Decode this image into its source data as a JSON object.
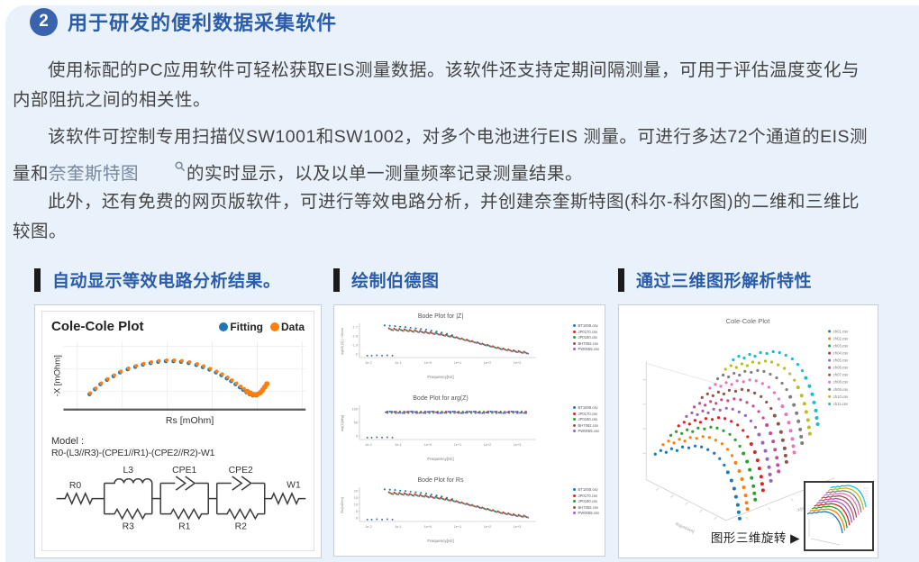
{
  "page": {
    "bg_color": "#e9f1fa",
    "accent_color": "#2a5caa"
  },
  "heading": {
    "number": "2",
    "title": "用于研发的便利数据采集软件"
  },
  "paragraphs": {
    "p1": "使用标配的PC应用软件可轻松获取EIS测量数据。该软件还支持定期间隔测量，可用于评估温度变化与内部阻抗之间的相关性。",
    "p2_pre": "该软件可控制专用扫描仪SW1001和SW1002，对多个电池进行EIS 测量。可进行多达72个通道的EIS测量和",
    "p2_link": "奈奎斯特图",
    "p2_post": "的实时显示，以及以单一测量频率记录测量结果。",
    "p3": "此外，还有免费的网页版软件，可进行等效电路分析，并创建奈奎斯特图(科尔-科尔图)的二维和三维比较图。"
  },
  "panels": {
    "p1_title": "自动显示等效电路分析结果。",
    "p2_title": "绘制伯德图",
    "p3_title": "通过三维图形解析特性",
    "rotate_label": "图形三维旋转 ▶"
  },
  "cole": {
    "title": "Cole-Cole Plot",
    "legend": [
      {
        "label": "Fitting",
        "color": "#1f77b4"
      },
      {
        "label": "Data",
        "color": "#ff7f0e"
      }
    ],
    "xlabel": "Rs [mOhm]",
    "ylabel": "-X [mOhm]",
    "model_label": "Model :",
    "model_formula": "R0-(L3//R3)-(CPE1//R1)-(CPE2//R2)-W1",
    "circuit_labels": {
      "r0": "R0",
      "l3": "L3",
      "r3": "R3",
      "cpe1": "CPE1",
      "r1": "R1",
      "cpe2": "CPE2",
      "r2": "R2",
      "w1": "W1"
    }
  },
  "chart_data": [
    {
      "key": "cole",
      "type": "scatter",
      "title": "Cole-Cole Plot",
      "xlabel": "Rs [mOhm]",
      "ylabel": "-X [mOhm]",
      "legend_position": "top-right",
      "series": [
        {
          "name": "Fitting",
          "color": "#1f77b4"
        },
        {
          "name": "Data",
          "color": "#ff7f0e"
        }
      ],
      "points": [
        [
          0.06,
          0.22
        ],
        [
          0.085,
          0.3
        ],
        [
          0.11,
          0.38
        ],
        [
          0.14,
          0.45
        ],
        [
          0.17,
          0.51
        ],
        [
          0.2,
          0.57
        ],
        [
          0.235,
          0.62
        ],
        [
          0.27,
          0.66
        ],
        [
          0.305,
          0.695
        ],
        [
          0.34,
          0.72
        ],
        [
          0.375,
          0.74
        ],
        [
          0.41,
          0.75
        ],
        [
          0.445,
          0.75
        ],
        [
          0.48,
          0.74
        ],
        [
          0.515,
          0.72
        ],
        [
          0.55,
          0.69
        ],
        [
          0.58,
          0.655
        ],
        [
          0.61,
          0.615
        ],
        [
          0.64,
          0.57
        ],
        [
          0.665,
          0.525
        ],
        [
          0.69,
          0.475
        ],
        [
          0.71,
          0.43
        ],
        [
          0.73,
          0.38
        ],
        [
          0.75,
          0.33
        ],
        [
          0.765,
          0.29
        ],
        [
          0.78,
          0.25
        ],
        [
          0.795,
          0.22
        ],
        [
          0.81,
          0.2
        ],
        [
          0.825,
          0.2
        ],
        [
          0.84,
          0.23
        ],
        [
          0.85,
          0.27
        ],
        [
          0.86,
          0.32
        ],
        [
          0.87,
          0.37
        ]
      ]
    },
    {
      "key": "bode",
      "type": "scatter",
      "files": [
        "BT1008.csv",
        "JP0170.csv",
        "JP0190.csv",
        "BH7082.csv",
        "PW0055.csv"
      ],
      "colors": [
        "#1f77b4",
        "#d62728",
        "#2ca02c",
        "#8c564b",
        "#9467bd"
      ],
      "xticks": [
        "1e-2",
        "1e-1",
        "1e+0",
        "1e+1",
        "1e+2",
        "1e+3"
      ],
      "xlabel": "Frequency[Hz]",
      "plots": [
        {
          "title": "Bode Plot for |Z|",
          "ylabel": "log10( |Z| ) / Ohms",
          "yticks": [
            "-1.7",
            "-1.8",
            "-1.9",
            "-2"
          ],
          "shape": "descend"
        },
        {
          "title": "Bode Plot for arg(Z)",
          "ylabel": "arg(Z)[deg]",
          "yticks": [
            "100",
            "50",
            "0"
          ],
          "shape": "flat"
        },
        {
          "title": "Bode Plot for Rs",
          "ylabel": "Rs[mOhm]",
          "yticks": [
            "20",
            "15",
            "10",
            "5",
            "0"
          ],
          "shape": "descend"
        }
      ],
      "curve_descend": [
        [
          0.16,
          0.9
        ],
        [
          0.19,
          0.89
        ],
        [
          0.22,
          0.88
        ],
        [
          0.25,
          0.87
        ],
        [
          0.28,
          0.85
        ],
        [
          0.31,
          0.84
        ],
        [
          0.34,
          0.82
        ],
        [
          0.37,
          0.8
        ],
        [
          0.4,
          0.78
        ],
        [
          0.43,
          0.76
        ],
        [
          0.46,
          0.73
        ],
        [
          0.49,
          0.7
        ],
        [
          0.52,
          0.67
        ],
        [
          0.55,
          0.63
        ],
        [
          0.58,
          0.59
        ],
        [
          0.61,
          0.55
        ],
        [
          0.64,
          0.51
        ],
        [
          0.67,
          0.47
        ],
        [
          0.7,
          0.43
        ],
        [
          0.73,
          0.39
        ],
        [
          0.76,
          0.35
        ],
        [
          0.79,
          0.31
        ],
        [
          0.82,
          0.28
        ],
        [
          0.85,
          0.25
        ],
        [
          0.88,
          0.22
        ],
        [
          0.91,
          0.2
        ],
        [
          0.94,
          0.18
        ]
      ],
      "flat_line": {
        "x0": 0.15,
        "x1": 0.95,
        "y": 0.84,
        "n": 34
      },
      "series_offsets": [
        [
          -0.055,
          0.1
        ],
        [
          0,
          0
        ],
        [
          0.008,
          -0.025
        ],
        [
          0.016,
          -0.045
        ],
        [
          0.024,
          -0.06
        ]
      ],
      "axis_dots": [
        [
          0.035,
          0.06
        ],
        [
          0.06,
          0.06
        ],
        [
          0.09,
          0.07
        ],
        [
          0.12,
          0.06
        ],
        [
          0.15,
          0.07
        ],
        [
          0.18,
          0.06
        ]
      ]
    },
    {
      "key": "cole3d",
      "type": "scatter3d",
      "title": "Cole-Cole Plot",
      "xlabel": "Rs[mOhm]",
      "ylabel": "-X[mOhm]",
      "series": [
        {
          "name": "ch01.csv",
          "color": "#1f77b4"
        },
        {
          "name": "ch02.csv",
          "color": "#ff7f0e"
        },
        {
          "name": "ch03.csv",
          "color": "#2ca02c"
        },
        {
          "name": "ch04.csv",
          "color": "#d62728"
        },
        {
          "name": "ch05.csv",
          "color": "#9467bd"
        },
        {
          "name": "ch06.csv",
          "color": "#c74b9b"
        },
        {
          "name": "ch07.csv",
          "color": "#8c564b"
        },
        {
          "name": "ch08.csv",
          "color": "#e377c2"
        },
        {
          "name": "ch09.csv",
          "color": "#7f7f7f"
        },
        {
          "name": "ch10.csv",
          "color": "#bcbd22"
        },
        {
          "name": "ch11.csv",
          "color": "#17becf"
        }
      ],
      "hook": [
        [
          40,
          162
        ],
        [
          46,
          158
        ],
        [
          52,
          160
        ],
        [
          58,
          156
        ],
        [
          64,
          158
        ],
        [
          70,
          154
        ],
        [
          77,
          155
        ],
        [
          84,
          153
        ],
        [
          91,
          154
        ],
        [
          98,
          157
        ],
        [
          105,
          161
        ],
        [
          111,
          167
        ],
        [
          116,
          174
        ],
        [
          120,
          182
        ],
        [
          124,
          191
        ],
        [
          127,
          200
        ],
        [
          129,
          209
        ],
        [
          131,
          218
        ],
        [
          132,
          226
        ],
        [
          133,
          233
        ]
      ],
      "step": [
        8.6,
        -10.4
      ]
    }
  ]
}
